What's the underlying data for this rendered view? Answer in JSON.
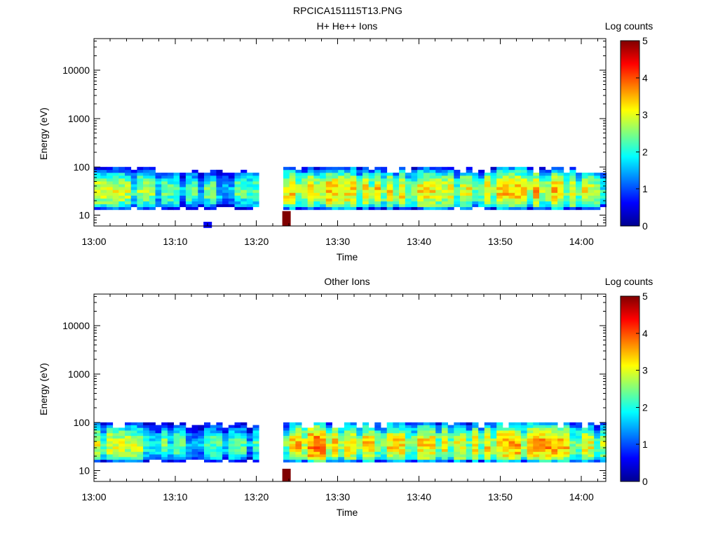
{
  "figure_title": "RPCICA151115T13.PNG",
  "chart_data": [
    {
      "type": "heatmap",
      "title": "H+ He++ Ions",
      "xlabel": "Time",
      "ylabel": "Energy (eV)",
      "x_ticks": [
        "13:00",
        "13:10",
        "13:20",
        "13:30",
        "13:40",
        "13:50",
        "14:00"
      ],
      "xlim": [
        "13:00",
        "14:03"
      ],
      "y_scale": "log",
      "ylim": [
        6,
        45000
      ],
      "y_ticks": [
        "10",
        "100",
        "1000",
        "10000"
      ],
      "colorbar": {
        "label": "Log counts",
        "range": [
          0,
          5
        ],
        "ticks": [
          "0",
          "1",
          "2",
          "3",
          "4",
          "5"
        ]
      },
      "data_gap": [
        "13:20",
        "13:23"
      ],
      "energy_band_eV": [
        13,
        100
      ],
      "peak_energy_eV": 30,
      "peak_log_counts_profile": {
        "times": [
          "13:00",
          "13:05",
          "13:10",
          "13:15",
          "13:20",
          "13:24",
          "13:27",
          "13:30",
          "13:35",
          "13:40",
          "13:45",
          "13:50",
          "13:55",
          "14:00",
          "14:03"
        ],
        "values": [
          3.0,
          2.8,
          2.3,
          2.4,
          2.3,
          3.3,
          3.7,
          3.3,
          3.3,
          3.2,
          3.0,
          3.4,
          3.5,
          3.1,
          2.6
        ]
      },
      "isolated_pixels": [
        {
          "time": "13:14",
          "energy_eV": 6,
          "log_counts": 0.6
        },
        {
          "time": "13:23.7",
          "energy_eV": 10,
          "log_counts": 5.0
        }
      ]
    },
    {
      "type": "heatmap",
      "title": "Other Ions",
      "xlabel": "Time",
      "ylabel": "Energy (eV)",
      "x_ticks": [
        "13:00",
        "13:10",
        "13:20",
        "13:30",
        "13:40",
        "13:50",
        "14:00"
      ],
      "xlim": [
        "13:00",
        "14:03"
      ],
      "y_scale": "log",
      "ylim": [
        6,
        45000
      ],
      "y_ticks": [
        "10",
        "100",
        "1000",
        "10000"
      ],
      "colorbar": {
        "label": "Log counts",
        "range": [
          0,
          5
        ],
        "ticks": [
          "0",
          "1",
          "2",
          "3",
          "4",
          "5"
        ]
      },
      "data_gap": [
        "13:20",
        "13:23"
      ],
      "energy_band_eV": [
        15,
        100
      ],
      "peak_energy_eV": 32,
      "peak_log_counts_profile": {
        "times": [
          "13:00",
          "13:05",
          "13:10",
          "13:15",
          "13:20",
          "13:24",
          "13:27",
          "13:30",
          "13:35",
          "13:40",
          "13:45",
          "13:50",
          "13:55",
          "14:00",
          "14:03"
        ],
        "values": [
          3.0,
          2.9,
          2.4,
          2.3,
          2.2,
          3.4,
          3.9,
          3.3,
          3.3,
          3.3,
          3.1,
          3.5,
          3.6,
          3.2,
          2.6
        ]
      },
      "isolated_pixels": [
        {
          "time": "13:23.7",
          "energy_eV": 9,
          "log_counts": 5.0
        }
      ]
    }
  ]
}
